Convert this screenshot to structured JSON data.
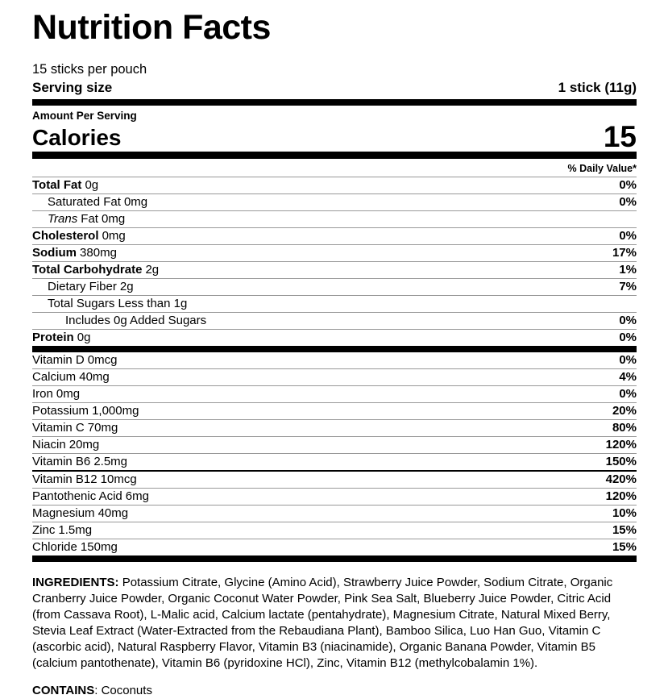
{
  "header": {
    "title": "Nutrition Facts",
    "servings_per_container": "15 sticks per pouch",
    "serving_size_label": "Serving size",
    "serving_size_value": "1 stick (11g)"
  },
  "calories": {
    "amount_per_serving_label": "Amount Per Serving",
    "label": "Calories",
    "value": "15"
  },
  "daily_value_header": "% Daily Value*",
  "nutrients": [
    {
      "name": "Total Fat",
      "amount": "0g",
      "dv": "0%",
      "strong": true,
      "indent": 0
    },
    {
      "name": "Saturated Fat",
      "amount": "0mg",
      "dv": "0%",
      "strong": false,
      "indent": 1
    },
    {
      "italic": "Trans",
      "name": "Fat",
      "amount": "0mg",
      "dv": "",
      "strong": false,
      "indent": 1
    },
    {
      "name": "Cholesterol",
      "amount": "0mg",
      "dv": "0%",
      "strong": true,
      "indent": 0
    },
    {
      "name": "Sodium",
      "amount": "380mg",
      "dv": "17%",
      "strong": true,
      "indent": 0
    },
    {
      "name": "Total Carbohydrate",
      "amount": "2g",
      "dv": "1%",
      "strong": true,
      "indent": 0
    },
    {
      "name": "Dietary Fiber",
      "amount": "2g",
      "dv": "7%",
      "strong": false,
      "indent": 1
    },
    {
      "name": "Total Sugars",
      "amount": "Less than 1g",
      "dv": "",
      "strong": false,
      "indent": 1
    },
    {
      "name": "Includes 0g Added Sugars",
      "amount": "",
      "dv": "0%",
      "strong": false,
      "indent": 2
    },
    {
      "name": "Protein",
      "amount": "0g",
      "dv": "0%",
      "strong": true,
      "indent": 0
    }
  ],
  "micronutrients": [
    {
      "name": "Vitamin D",
      "amount": "0mcg",
      "dv": "0%"
    },
    {
      "name": "Calcium",
      "amount": "40mg",
      "dv": "4%"
    },
    {
      "name": "Iron",
      "amount": "0mg",
      "dv": "0%"
    },
    {
      "name": "Potassium",
      "amount": "1,000mg",
      "dv": "20%"
    },
    {
      "name": "Vitamin C",
      "amount": "70mg",
      "dv": "80%"
    },
    {
      "name": "Niacin",
      "amount": "20mg",
      "dv": "120%"
    },
    {
      "name": "Vitamin B6",
      "amount": "2.5mg",
      "dv": "150%"
    },
    {
      "name": "Vitamin B12",
      "amount": "10mcg",
      "dv": "420%",
      "heavy_top": true
    },
    {
      "name": "Pantothenic Acid",
      "amount": "6mg",
      "dv": "120%"
    },
    {
      "name": "Magnesium",
      "amount": "40mg",
      "dv": "10%"
    },
    {
      "name": "Zinc",
      "amount": "1.5mg",
      "dv": "15%"
    },
    {
      "name": "Chloride",
      "amount": "150mg",
      "dv": "15%"
    }
  ],
  "ingredients": {
    "label": "INGREDIENTS:",
    "text": "Potassium Citrate, Glycine (Amino Acid), Strawberry Juice Powder, Sodium Citrate, Organic Cranberry Juice Powder, Organic Coconut Water Powder, Pink Sea Salt, Blueberry Juice Powder, Citric Acid (from Cassava Root), L-Malic acid, Calcium lactate (pentahydrate), Magnesium Citrate, Natural Mixed Berry, Stevia Leaf Extract (Water-Extracted from the Rebaudiana Plant), Bamboo Silica, Luo Han Guo, Vitamin C (ascorbic acid), Natural Raspberry Flavor, Vitamin B3 (niacinamide), Organic Banana Powder, Vitamin B5 (calcium pantothenate), Vitamin B6 (pyridoxine HCl), Zinc, Vitamin B12 (methylcobalamin 1%)."
  },
  "contains": {
    "label": "CONTAINS",
    "text": ": Coconuts"
  },
  "colors": {
    "text": "#000000",
    "bar": "#000000",
    "hairline": "#999999",
    "background": "#ffffff"
  }
}
